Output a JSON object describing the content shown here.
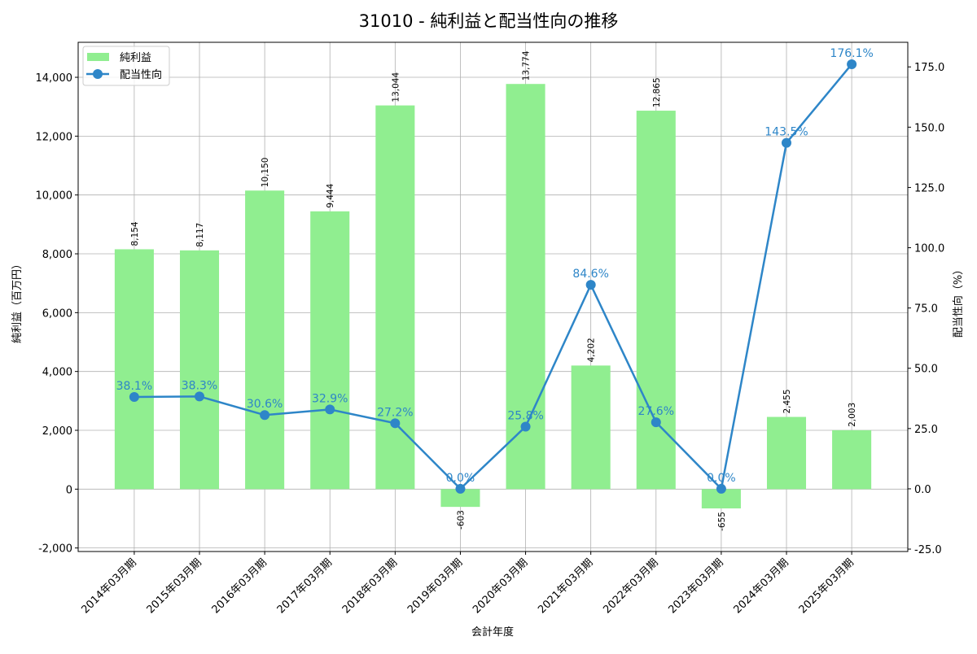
{
  "chart_data": {
    "type": "bar+line",
    "title": "31010 - 純利益と配当性向の推移",
    "xlabel": "会計年度",
    "ylabel": "純利益（百万円）",
    "y2label": "配当性向（%）",
    "categories": [
      "2014年03月期",
      "2015年03月期",
      "2016年03月期",
      "2017年03月期",
      "2018年03月期",
      "2019年03月期",
      "2020年03月期",
      "2021年03月期",
      "2022年03月期",
      "2023年03月期",
      "2024年03月期",
      "2025年03月期"
    ],
    "series": [
      {
        "name": "純利益",
        "type": "bar",
        "axis": "left",
        "color": "#90ee90",
        "values": [
          8154,
          8117,
          10150,
          9444,
          13044,
          -603,
          13774,
          4202,
          12865,
          -655,
          2455,
          2003
        ],
        "labels": [
          "8,154",
          "8,117",
          "10,150",
          "9,444",
          "13,044",
          "-603",
          "13,774",
          "4,202",
          "12,865",
          "-655",
          "2,455",
          "2,003"
        ]
      },
      {
        "name": "配当性向",
        "type": "line",
        "axis": "right",
        "color": "#2e86c8",
        "values": [
          38.1,
          38.3,
          30.6,
          32.9,
          27.2,
          0.0,
          25.8,
          84.6,
          27.6,
          0.0,
          143.5,
          176.1
        ],
        "labels": [
          "38.1%",
          "38.3%",
          "30.6%",
          "32.9%",
          "27.2%",
          "0.0%",
          "25.8%",
          "84.6%",
          "27.6%",
          "0.0%",
          "143.5%",
          "176.1%"
        ]
      }
    ],
    "ylim": [
      -2120,
      15190
    ],
    "y2lim": [
      -26,
      185.2
    ],
    "yticks": [
      -2000,
      0,
      2000,
      4000,
      6000,
      8000,
      10000,
      12000,
      14000
    ],
    "ytick_labels": [
      "-2,000",
      "0",
      "2,000",
      "4,000",
      "6,000",
      "8,000",
      "10,000",
      "12,000",
      "14,000"
    ],
    "y2ticks": [
      -25,
      0,
      25,
      50,
      75,
      100,
      125,
      150,
      175
    ],
    "y2tick_labels": [
      "-25.0",
      "0.0",
      "25.0",
      "50.0",
      "75.0",
      "100.0",
      "125.0",
      "150.0",
      "175.0"
    ],
    "grid": true,
    "legend": "top-left"
  }
}
